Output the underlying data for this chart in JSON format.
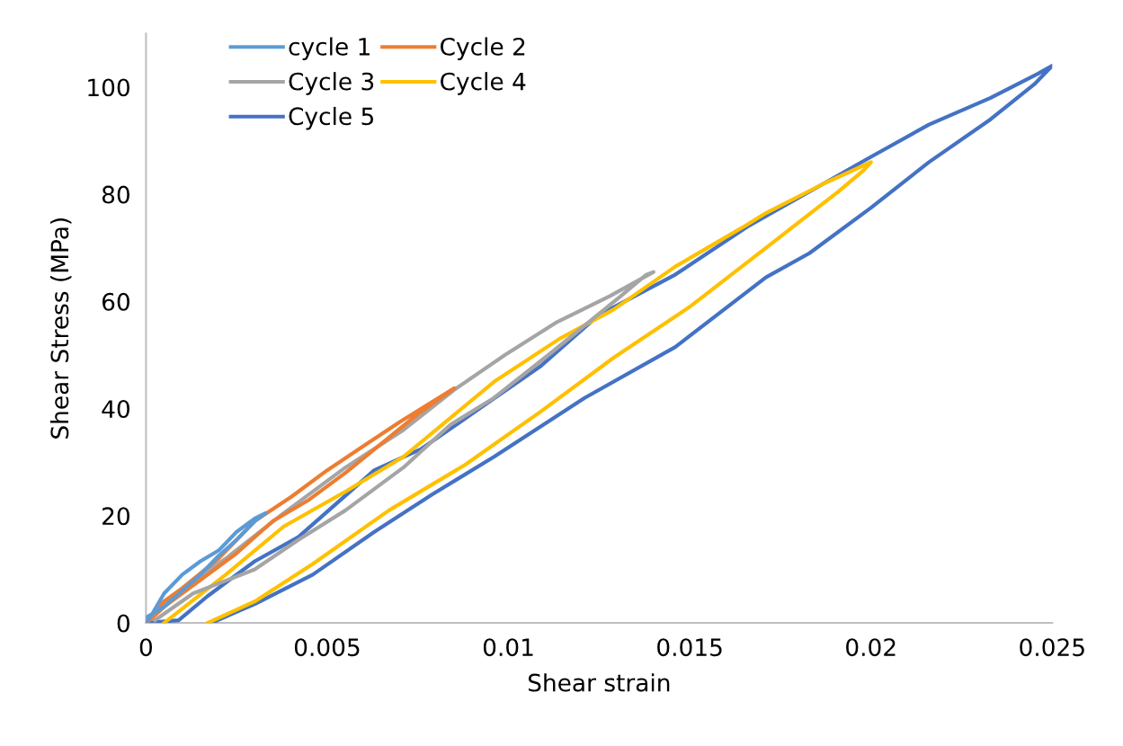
{
  "chart_data": {
    "type": "line",
    "xlabel": "Shear strain",
    "ylabel": "Shear Stress (MPa)",
    "xlim": [
      0,
      0.025
    ],
    "xticks": [
      0,
      0.005,
      0.01,
      0.015,
      0.02,
      0.025
    ],
    "ylim": [
      0,
      110
    ],
    "yticks": [
      0,
      20,
      40,
      60,
      80,
      100
    ],
    "grid": false,
    "legend": "top left",
    "marker": "none",
    "line_style": "solid",
    "series": [
      {
        "name": "cycle 1",
        "color": "#5b9bd5",
        "x": [
          0,
          0.0002,
          0.0005,
          0.001,
          0.0015,
          0.002,
          0.0025,
          0.003,
          0.0033,
          0.003,
          0.0025,
          0.002,
          0.0015,
          0.001,
          0.0005,
          0
        ],
        "values": [
          0,
          2,
          5.5,
          9,
          11.5,
          13.5,
          17,
          19.5,
          20.5,
          19,
          15.5,
          12.5,
          9,
          6,
          3,
          1
        ]
      },
      {
        "name": "Cycle 2",
        "color": "#ed7d31",
        "x": [
          0,
          0.0005,
          0.001,
          0.002,
          0.003,
          0.004,
          0.005,
          0.006,
          0.007,
          0.0085,
          0.0075,
          0.0065,
          0.0055,
          0.0045,
          0.0035,
          0.0025,
          0.0015,
          0.0005,
          0.0001
        ],
        "values": [
          0,
          4,
          6.5,
          12,
          19,
          23.5,
          28.5,
          33,
          37.5,
          43.8,
          39,
          33.5,
          28,
          23,
          19,
          13,
          8,
          3,
          0.5
        ]
      },
      {
        "name": "Cycle 3",
        "color": "#a5a5a5",
        "x": [
          0.00025,
          0.0013,
          0.003,
          0.0042,
          0.0055,
          0.0071,
          0.0084,
          0.0096,
          0.0111,
          0.0131,
          0.0138,
          0.014,
          0.0128,
          0.0113,
          0.0099,
          0.0085,
          0.0071,
          0.0055,
          0.0038,
          0.0022,
          0.0005,
          0
        ],
        "values": [
          0.5,
          5.5,
          10,
          15.5,
          21,
          29,
          37,
          42,
          50,
          61,
          65,
          65.5,
          61,
          56,
          50,
          43.5,
          36,
          29,
          20.5,
          12,
          4,
          0
        ]
      },
      {
        "name": "Cycle 4",
        "color": "#ffc000",
        "x": [
          0.0017,
          0.003,
          0.0046,
          0.0067,
          0.0088,
          0.0109,
          0.0129,
          0.015,
          0.0171,
          0.0191,
          0.0198,
          0.02,
          0.0187,
          0.0171,
          0.0165,
          0.0146,
          0.0129,
          0.0114,
          0.0096,
          0.0071,
          0.0055,
          0.0038,
          0.0022,
          0.0005
        ],
        "values": [
          0,
          4,
          11,
          21,
          29.5,
          39.5,
          49.5,
          59,
          70,
          80.5,
          84.5,
          86,
          82,
          76.5,
          74,
          66.5,
          58.5,
          53,
          45,
          31,
          24.5,
          18,
          9,
          0
        ]
      },
      {
        "name": "Cycle 5",
        "color": "#4472c4",
        "x": [
          0.0018,
          0.003,
          0.0046,
          0.0063,
          0.0079,
          0.0096,
          0.0121,
          0.0146,
          0.0171,
          0.0183,
          0.02,
          0.0216,
          0.0233,
          0.0245,
          0.025,
          0.0246,
          0.0233,
          0.0216,
          0.02,
          0.0183,
          0.0166,
          0.0146,
          0.0125,
          0.0109,
          0.0092,
          0.0076,
          0.0063,
          0.0042,
          0.003,
          0.0017,
          0.0009,
          0
        ],
        "values": [
          0,
          3.5,
          9,
          17,
          24,
          31,
          42,
          51.5,
          64.5,
          69,
          77.5,
          86,
          94,
          100.5,
          104,
          102.5,
          98,
          93,
          87,
          80.5,
          74,
          65,
          57.5,
          48,
          40,
          32.5,
          28.5,
          16,
          11.5,
          5,
          0.5,
          0
        ]
      }
    ]
  }
}
